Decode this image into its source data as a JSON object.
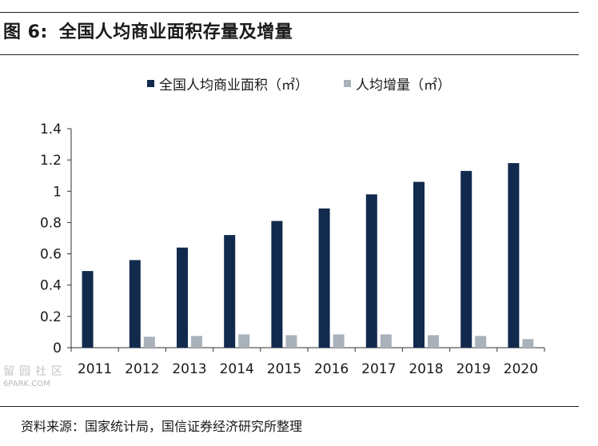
{
  "figure": {
    "label": "图 6:",
    "title": "全国人均商业面积存量及增量"
  },
  "source": "资料来源：国家统计局，国信证券经济研究所整理",
  "watermark": {
    "cn": "留园社区",
    "en": "6PARK.COM"
  },
  "colors": {
    "series1": "#112a4d",
    "series2": "#a9b1bb",
    "rule": "#222222"
  },
  "chart_data": {
    "type": "bar",
    "categories": [
      "2011",
      "2012",
      "2013",
      "2014",
      "2015",
      "2016",
      "2017",
      "2018",
      "2019",
      "2020"
    ],
    "series": [
      {
        "name": "全国人均商业面积（㎡）",
        "values": [
          0.49,
          0.56,
          0.64,
          0.72,
          0.81,
          0.89,
          0.98,
          1.06,
          1.13,
          1.18
        ]
      },
      {
        "name": "人均增量（㎡）",
        "values": [
          0,
          0.07,
          0.075,
          0.085,
          0.08,
          0.085,
          0.085,
          0.08,
          0.075,
          0.055
        ]
      }
    ],
    "yticks": [
      "0",
      "0.2",
      "0.4",
      "0.6",
      "0.8",
      "1",
      "1.2",
      "1.4"
    ],
    "ylim": [
      0,
      1.4
    ],
    "grid": false,
    "legend": "top-center"
  }
}
